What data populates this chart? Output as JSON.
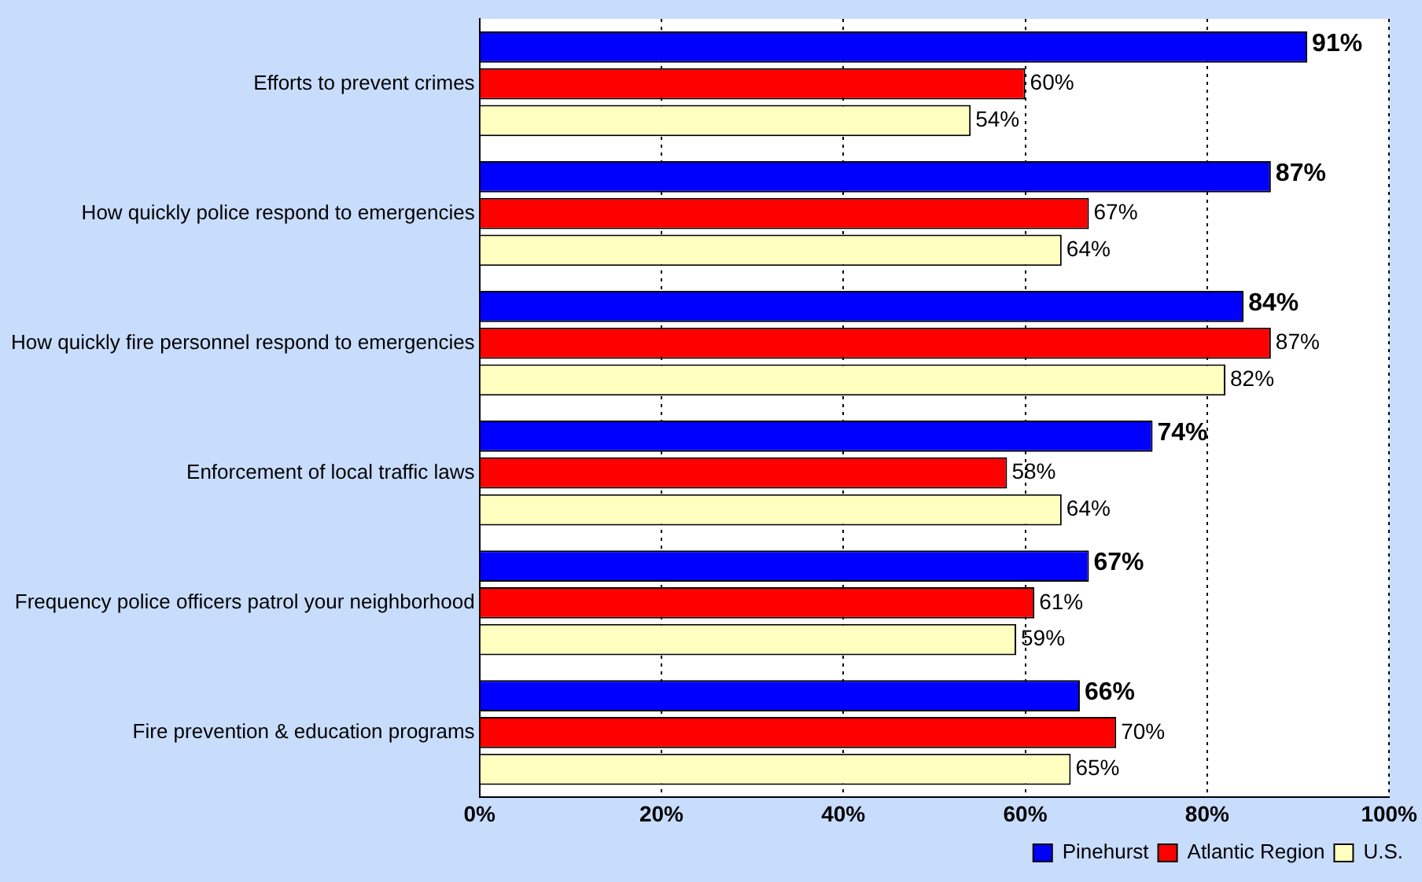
{
  "chart_data": {
    "type": "bar",
    "orientation": "horizontal",
    "categories": [
      "Efforts to prevent crimes",
      "How quickly police respond to emergencies",
      "How quickly fire personnel respond to emergencies",
      "Enforcement of local traffic laws",
      "Frequency police officers patrol your neighborhood",
      "Fire prevention & education programs"
    ],
    "series": [
      {
        "name": "Pinehurst",
        "color": "#0000ff",
        "values": [
          91,
          87,
          84,
          74,
          67,
          66
        ],
        "value_labels": [
          "91%",
          "87%",
          "84%",
          "74%",
          "67%",
          "66%"
        ]
      },
      {
        "name": "Atlantic Region",
        "color": "#ff0000",
        "values": [
          60,
          67,
          87,
          58,
          61,
          70
        ],
        "value_labels": [
          "60%",
          "67%",
          "87%",
          "58%",
          "61%",
          "70%"
        ]
      },
      {
        "name": "U.S.",
        "color": "#ffffc0",
        "values": [
          54,
          64,
          82,
          64,
          59,
          65
        ],
        "value_labels": [
          "54%",
          "64%",
          "82%",
          "64%",
          "59%",
          "65%"
        ]
      }
    ],
    "xlim": [
      0,
      100
    ],
    "xticks": [
      {
        "value": 0,
        "label": "0%"
      },
      {
        "value": 20,
        "label": "20%"
      },
      {
        "value": 40,
        "label": "40%"
      },
      {
        "value": 60,
        "label": "60%"
      },
      {
        "value": 80,
        "label": "80%"
      },
      {
        "value": 100,
        "label": "100%"
      }
    ],
    "grid": "x",
    "legend": "bottom right"
  }
}
